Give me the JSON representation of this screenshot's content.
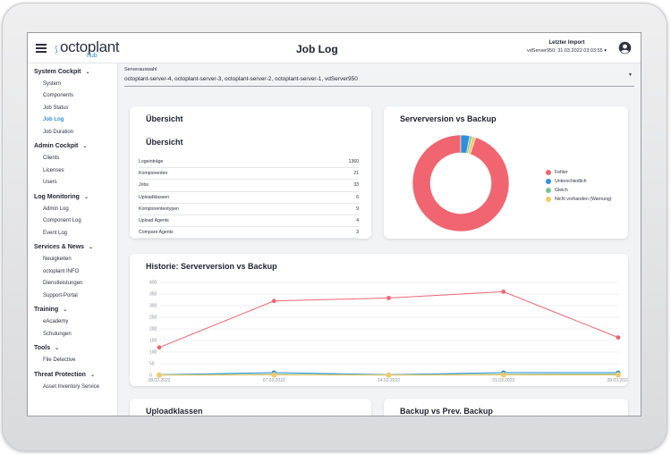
{
  "header": {
    "logo_text": "octoplant",
    "logo_sub": "hub",
    "title": "Job Log",
    "import_label": "Letzter Import",
    "import_value": "vdServer950: 31.03.2022 03:03:55"
  },
  "sidebar": {
    "groups": [
      {
        "label": "System Cockpit",
        "items": [
          "System",
          "Components",
          "Job Status",
          "Job Log",
          "Job Duration"
        ]
      },
      {
        "label": "Admin Cockpit",
        "items": [
          "Clients",
          "Licenses",
          "Users"
        ]
      },
      {
        "label": "Log Monitoring",
        "items": [
          "Admin Log",
          "Component Log",
          "Event Log"
        ]
      },
      {
        "label": "Services & News",
        "items": [
          "Neuigkeiten",
          "octoplant INFO",
          "Dienstleistungen",
          "Support-Portal"
        ]
      },
      {
        "label": "Training",
        "items": [
          "eAcademy",
          "Schulungen"
        ]
      },
      {
        "label": "Tools",
        "items": [
          "File Detective"
        ]
      },
      {
        "label": "Threat Protection",
        "items": [
          "Asset Inventory Service"
        ]
      }
    ],
    "active_item": "Job Log"
  },
  "server_select": {
    "label": "Serverauswahl",
    "value": "octoplant-server-4, octoplant-server-3, octoplant-server-2, octoplant-server-1, vdServer950"
  },
  "overview": {
    "title": "Übersicht",
    "subtitle": "Übersicht",
    "rows": [
      {
        "label": "Logeinträge",
        "value": "1360"
      },
      {
        "label": "Komponenten",
        "value": "21"
      },
      {
        "label": "Jobs",
        "value": "33"
      },
      {
        "label": "Uploadklassen",
        "value": "6"
      },
      {
        "label": "Komponententypen",
        "value": "9"
      },
      {
        "label": "Upload Agents",
        "value": "4"
      },
      {
        "label": "Compare Agents",
        "value": "3"
      }
    ]
  },
  "donut_card": {
    "title": "Serverversion vs Backup",
    "legend": [
      {
        "label": "Fehler",
        "color": "#f0656f"
      },
      {
        "label": "Unterschiedlich",
        "color": "#2e8fdb"
      },
      {
        "label": "Gleich",
        "color": "#7cc48e"
      },
      {
        "label": "Nicht vorhanden (Warnung)",
        "color": "#f2c96b"
      }
    ],
    "chart_data": {
      "type": "pie",
      "categories": [
        "Fehler",
        "Unterschiedlich",
        "Gleich",
        "Nicht vorhanden (Warnung)"
      ],
      "values": [
        95,
        3,
        0.8,
        1.2
      ],
      "donut": true
    }
  },
  "history_card": {
    "title": "Historie: Serverversion vs Backup",
    "chart_data": {
      "type": "line",
      "x": [
        "28.02.2022",
        "07.03.2022",
        "14.03.2022",
        "21.03.2022",
        "28.03.2022"
      ],
      "ylim": [
        0,
        400
      ],
      "yticks": [
        0,
        50,
        100,
        150,
        200,
        250,
        300,
        350,
        400
      ],
      "series": [
        {
          "name": "Fehler",
          "color": "#f0656f",
          "values": [
            120,
            320,
            333,
            360,
            163
          ]
        },
        {
          "name": "Unterschiedlich",
          "color": "#2e8fdb",
          "values": [
            3,
            12,
            3,
            12,
            12
          ]
        },
        {
          "name": "Gleich",
          "color": "#7cc48e",
          "values": [
            2,
            5,
            2,
            5,
            6
          ]
        },
        {
          "name": "Nicht vorhanden (Warnung)",
          "color": "#f2c96b",
          "values": [
            1,
            2,
            1,
            2,
            2
          ]
        }
      ]
    }
  },
  "bottom_cards": {
    "left_title": "Uploadklassen",
    "right_title": "Backup vs Prev. Backup"
  }
}
